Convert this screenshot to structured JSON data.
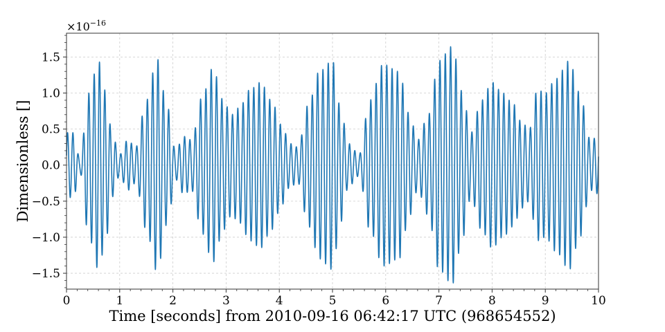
{
  "chart_data": {
    "type": "line",
    "xlabel": "Time [seconds] from 2010-09-16 06:42:17 UTC (968654552)",
    "ylabel": "Dimensionless []",
    "y_offset_label": "×10",
    "y_offset_exponent": "−16",
    "xlim": [
      0,
      10
    ],
    "ylim": [
      -1.72,
      1.83
    ],
    "x_ticks": [
      0,
      1,
      2,
      3,
      4,
      5,
      6,
      7,
      8,
      9,
      10
    ],
    "x_tick_labels": [
      "0",
      "1",
      "2",
      "3",
      "4",
      "5",
      "6",
      "7",
      "8",
      "9",
      "10"
    ],
    "y_ticks": [
      -1.5,
      -1.0,
      -0.5,
      0.0,
      0.5,
      1.0,
      1.5
    ],
    "y_tick_labels": [
      "−1.5",
      "−1.0",
      "−0.5",
      "0.0",
      "0.5",
      "1.0",
      "1.5"
    ],
    "grid": true,
    "line_color": "#1f77b4",
    "series": [
      {
        "carrier_frequency_hz": 10,
        "envelope_t": [
          0,
          0.13,
          0.25,
          0.42,
          0.6,
          0.75,
          0.85,
          1.0,
          1.15,
          1.3,
          1.5,
          1.7,
          1.9,
          2.05,
          2.2,
          2.35,
          2.55,
          2.75,
          2.95,
          3.1,
          3.25,
          3.45,
          3.65,
          3.85,
          4.05,
          4.2,
          4.35,
          4.55,
          4.75,
          5.0,
          5.15,
          5.3,
          5.5,
          5.7,
          5.95,
          6.25,
          6.45,
          6.6,
          6.8,
          7.0,
          7.25,
          7.45,
          7.6,
          7.8,
          8.0,
          8.2,
          8.4,
          8.55,
          8.7,
          8.85,
          9.0,
          9.2,
          9.45,
          9.65,
          9.85,
          10.0
        ],
        "envelope_amp": [
          0.45,
          0.45,
          0.1,
          1.0,
          1.45,
          1.0,
          0.45,
          0.15,
          0.35,
          0.25,
          0.9,
          1.48,
          0.8,
          0.2,
          0.4,
          0.35,
          0.95,
          1.35,
          0.9,
          0.7,
          0.8,
          1.05,
          1.15,
          0.9,
          0.55,
          0.3,
          0.25,
          0.85,
          1.3,
          1.45,
          0.8,
          0.3,
          0.15,
          0.9,
          1.4,
          1.3,
          0.7,
          0.35,
          0.7,
          1.45,
          1.65,
          1.0,
          0.45,
          0.9,
          1.15,
          1.0,
          0.85,
          0.6,
          0.5,
          1.05,
          1.0,
          1.2,
          1.45,
          1.0,
          0.35,
          0.4
        ]
      }
    ]
  }
}
